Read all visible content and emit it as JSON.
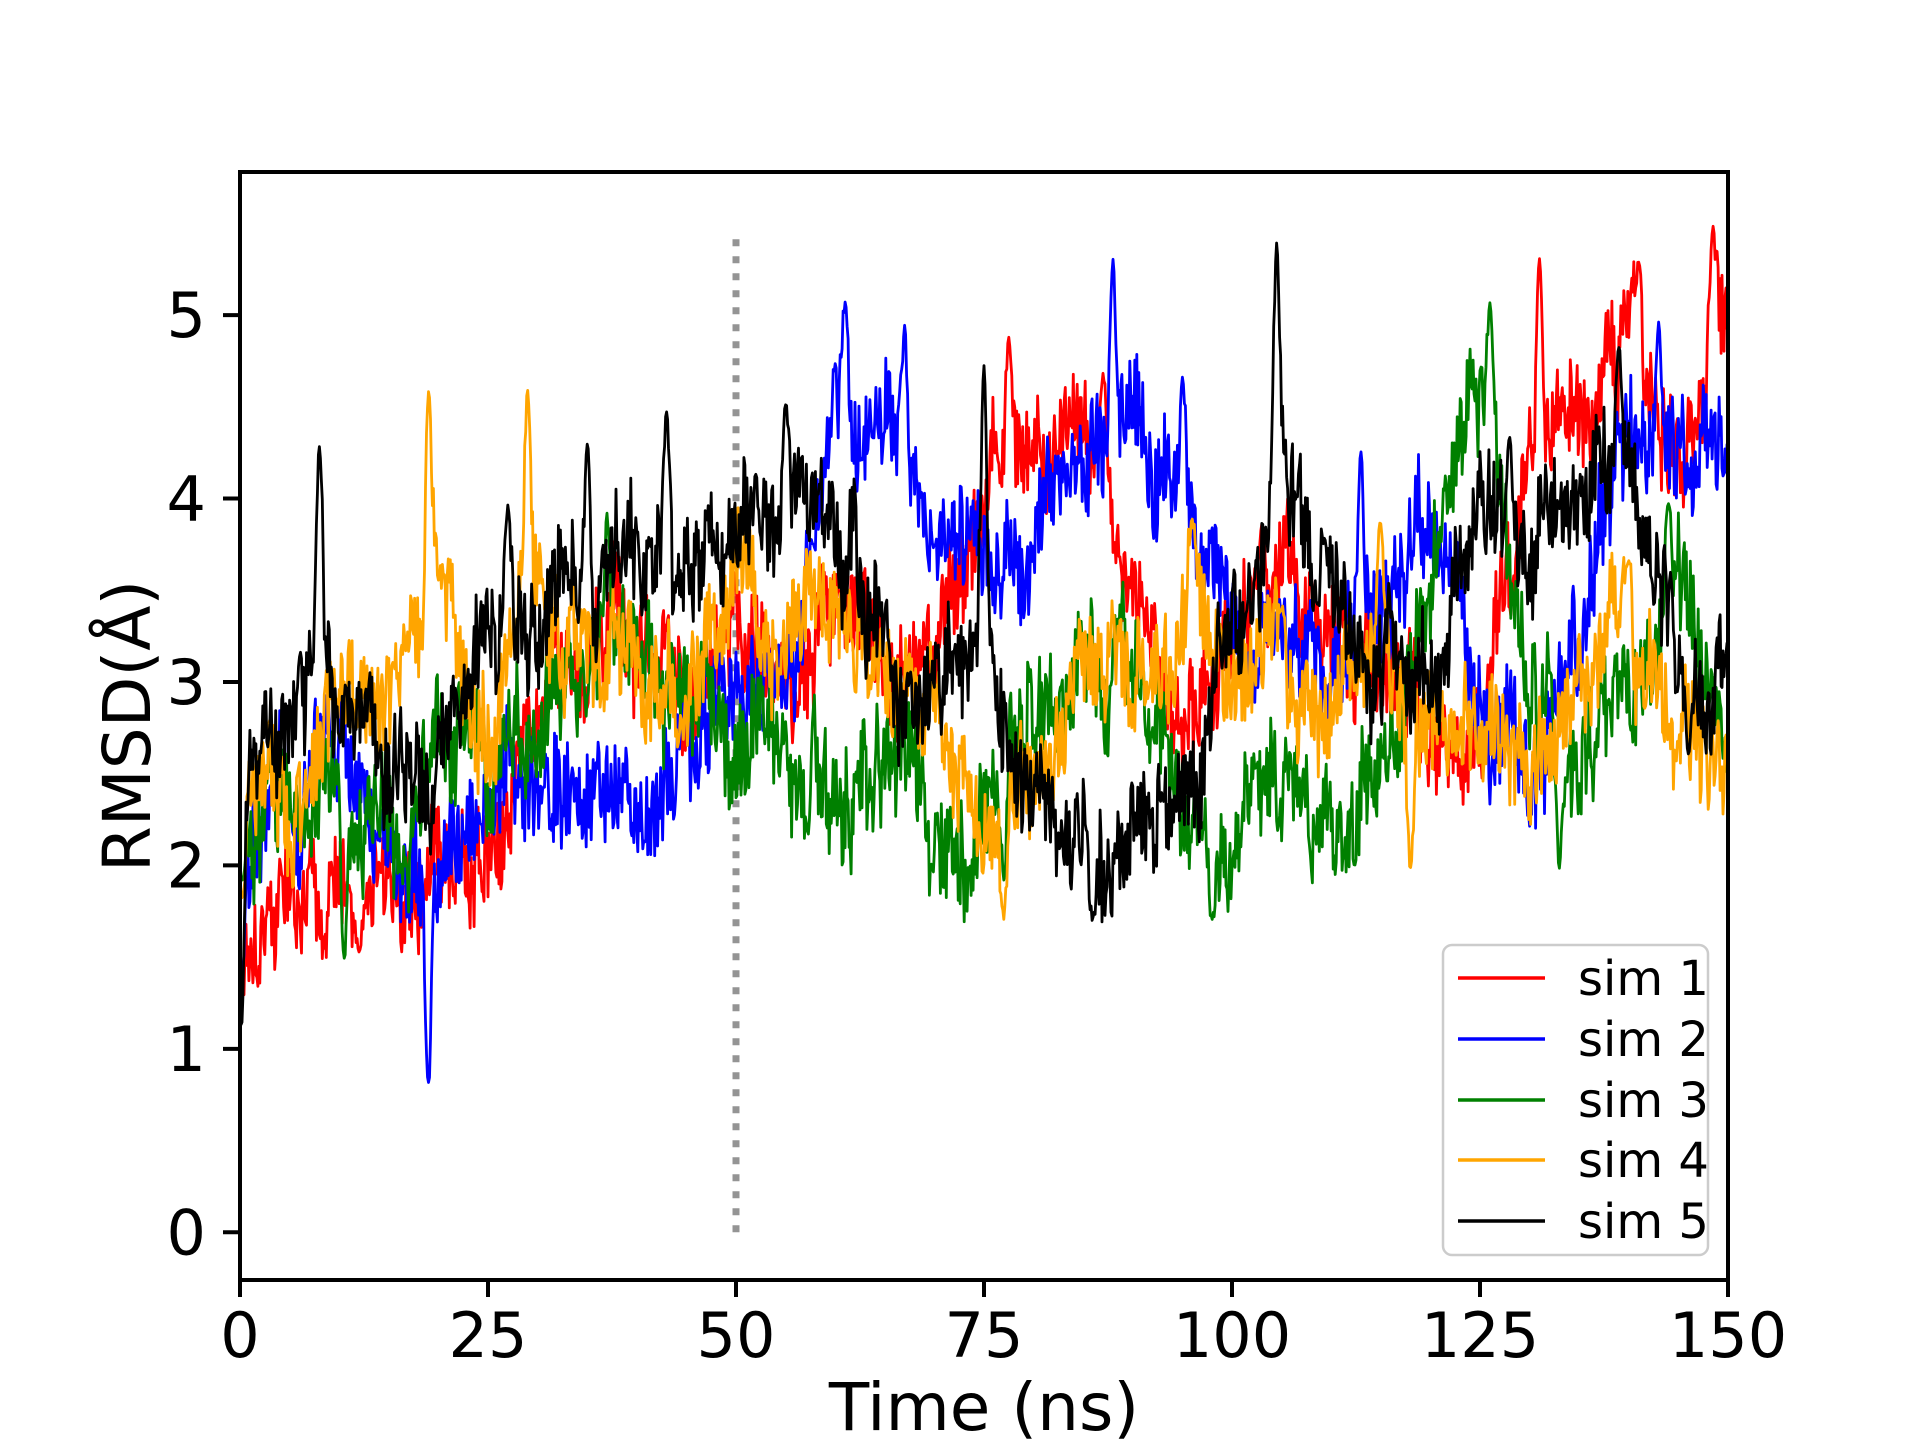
{
  "figure": {
    "background": "#ffffff",
    "frame_color": "#000000"
  },
  "chart_data": {
    "type": "line",
    "title": "",
    "xlabel": "Time (ns)",
    "ylabel": "RMSD(Å)",
    "xlim": [
      0,
      150
    ],
    "ylim": [
      -0.26,
      5.78
    ],
    "xticks": [
      0,
      25,
      50,
      75,
      100,
      125,
      150
    ],
    "yticks": [
      0,
      1,
      2,
      3,
      4,
      5
    ],
    "grid": false,
    "legend": {
      "position": "lower right",
      "border_color": "#cccccc",
      "labels": [
        "sim 1",
        "sim 2",
        "sim 3",
        "sim 4",
        "sim 5"
      ]
    },
    "vline": {
      "x": 50,
      "y_start": 0,
      "y_end": 5.45,
      "color": "#949494",
      "style": "dotted"
    },
    "sample_dt_ns": 0.1,
    "anchor_dt_ns": 5,
    "series": [
      {
        "name": "sim 1",
        "color": "#ff0000",
        "seed": 101,
        "noise": 0.5,
        "anchors": [
          1.8,
          1.9,
          1.85,
          1.9,
          2.1,
          2.2,
          2.9,
          3.2,
          3.1,
          3.0,
          3.2,
          3.1,
          3.2,
          3.1,
          3.3,
          4.0,
          4.2,
          4.2,
          3.6,
          2.9,
          3.2,
          3.5,
          3.1,
          2.9,
          2.7,
          2.9,
          4.5,
          4.4,
          4.7,
          4.2,
          5.0
        ],
        "spikes": [
          [
            0.15,
            1.2
          ],
          [
            12,
            1.5
          ],
          [
            77.5,
            4.9
          ],
          [
            87,
            4.7
          ],
          [
            103,
            3.9
          ],
          [
            131,
            5.35
          ],
          [
            141,
            5.3
          ],
          [
            148.5,
            5.5
          ]
        ]
      },
      {
        "name": "sim 2",
        "color": "#0000ff",
        "seed": 202,
        "noise": 0.5,
        "anchors": [
          2.2,
          2.3,
          2.6,
          2.2,
          1.8,
          2.3,
          2.5,
          2.5,
          2.3,
          2.6,
          2.8,
          3.3,
          4.4,
          4.4,
          4.0,
          3.7,
          3.9,
          4.4,
          4.5,
          4.2,
          3.3,
          3.4,
          3.3,
          3.4,
          3.8,
          2.9,
          2.7,
          3.3,
          4.3,
          4.4,
          4.2
        ],
        "spikes": [
          [
            0.15,
            1.35
          ],
          [
            19,
            0.75
          ],
          [
            61,
            5.1
          ],
          [
            67,
            5.0
          ],
          [
            88,
            5.35
          ],
          [
            95,
            4.7
          ],
          [
            113,
            4.3
          ],
          [
            143,
            5.0
          ]
        ]
      },
      {
        "name": "sim 3",
        "color": "#008000",
        "seed": 303,
        "noise": 0.5,
        "anchors": [
          2.2,
          2.3,
          2.2,
          2.4,
          2.5,
          2.4,
          2.8,
          3.1,
          3.3,
          2.9,
          2.7,
          2.6,
          2.5,
          2.5,
          2.3,
          2.5,
          2.8,
          3.1,
          3.2,
          2.4,
          2.2,
          2.5,
          2.3,
          2.5,
          3.5,
          4.6,
          3.1,
          2.4,
          2.7,
          3.5,
          2.6
        ],
        "spikes": [
          [
            0.2,
            1.9
          ],
          [
            10.5,
            1.45
          ],
          [
            37,
            3.95
          ],
          [
            77,
            1.9
          ],
          [
            98,
            1.68
          ],
          [
            126,
            5.1
          ],
          [
            133,
            1.95
          ],
          [
            144,
            4.0
          ]
        ]
      },
      {
        "name": "sim 4",
        "color": "#ffa500",
        "seed": 404,
        "noise": 0.5,
        "anchors": [
          2.3,
          2.4,
          2.6,
          3.0,
          3.5,
          2.6,
          3.6,
          3.1,
          3.0,
          2.9,
          3.3,
          3.1,
          3.2,
          3.2,
          2.9,
          2.3,
          2.4,
          2.9,
          3.0,
          3.3,
          2.9,
          2.9,
          2.6,
          3.2,
          2.5,
          2.7,
          2.9,
          3.0,
          3.3,
          2.6,
          2.5
        ],
        "spikes": [
          [
            0.2,
            1.8
          ],
          [
            19,
            4.65
          ],
          [
            29,
            4.65
          ],
          [
            77,
            1.68
          ],
          [
            96,
            3.9
          ],
          [
            115,
            3.9
          ],
          [
            118,
            1.95
          ],
          [
            140,
            3.7
          ]
        ]
      },
      {
        "name": "sim 5",
        "color": "#000000",
        "seed": 505,
        "noise": 0.5,
        "anchors": [
          2.6,
          2.8,
          3.0,
          2.5,
          2.6,
          3.2,
          3.3,
          3.6,
          3.4,
          3.7,
          3.8,
          4.0,
          3.8,
          3.1,
          2.8,
          3.2,
          2.4,
          2.1,
          2.3,
          2.5,
          3.3,
          4.4,
          3.2,
          3.0,
          3.0,
          3.6,
          3.8,
          3.9,
          4.0,
          3.3,
          2.9
        ],
        "spikes": [
          [
            0.15,
            1.05
          ],
          [
            8,
            4.35
          ],
          [
            27,
            4.0
          ],
          [
            35,
            4.35
          ],
          [
            43,
            4.5
          ],
          [
            55,
            4.55
          ],
          [
            75,
            4.8
          ],
          [
            86,
            1.7
          ],
          [
            104.5,
            5.45
          ],
          [
            128,
            4.35
          ],
          [
            139,
            4.85
          ],
          [
            146,
            2.6
          ]
        ]
      }
    ]
  }
}
